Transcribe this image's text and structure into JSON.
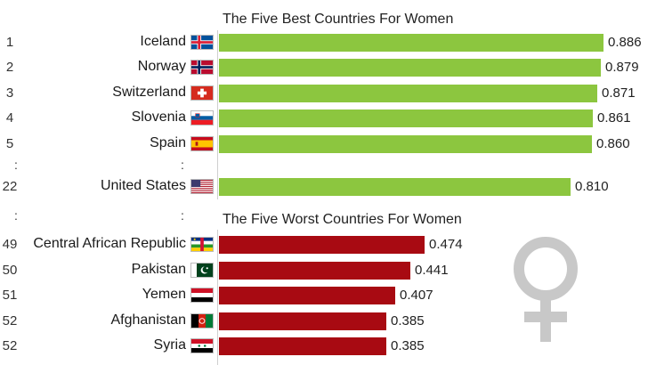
{
  "chart_data": {
    "type": "bar",
    "orientation": "horizontal",
    "xlim": [
      0,
      0.886
    ],
    "grid": false,
    "sections": [
      {
        "title": "The Five Best Countries For Women",
        "color": "#8cc63f",
        "rows": [
          {
            "rank": "1",
            "country": "Iceland",
            "value": 0.886,
            "label": "0.886",
            "flag": "iceland-flag"
          },
          {
            "rank": "2",
            "country": "Norway",
            "value": 0.879,
            "label": "0.879",
            "flag": "norway-flag"
          },
          {
            "rank": "3",
            "country": "Switzerland",
            "value": 0.871,
            "label": "0.871",
            "flag": "switzerland-flag"
          },
          {
            "rank": "4",
            "country": "Slovenia",
            "value": 0.861,
            "label": "0.861",
            "flag": "slovenia-flag"
          },
          {
            "rank": "5",
            "country": "Spain",
            "value": 0.86,
            "label": "0.860",
            "flag": "spain-flag"
          },
          {
            "rank": "22",
            "country": "United States",
            "value": 0.81,
            "label": "0.810",
            "flag": "usa-flag"
          }
        ]
      },
      {
        "title": "The Five Worst Countries For Women",
        "color": "#a80a12",
        "rows": [
          {
            "rank": "49",
            "country": "Central African Republic",
            "value": 0.474,
            "label": "0.474",
            "flag": "central-african-republic-flag"
          },
          {
            "rank": "50",
            "country": "Pakistan",
            "value": 0.441,
            "label": "0.441",
            "flag": "pakistan-flag"
          },
          {
            "rank": "51",
            "country": "Yemen",
            "value": 0.407,
            "label": "0.407",
            "flag": "yemen-flag"
          },
          {
            "rank": "52",
            "country": "Afghanistan",
            "value": 0.385,
            "label": "0.385",
            "flag": "afghanistan-flag"
          },
          {
            "rank": "52",
            "country": "Syria",
            "value": 0.385,
            "label": "0.385",
            "flag": "syria-flag"
          }
        ]
      }
    ],
    "ellipsis": ":",
    "decoration": "female-symbol-icon"
  }
}
